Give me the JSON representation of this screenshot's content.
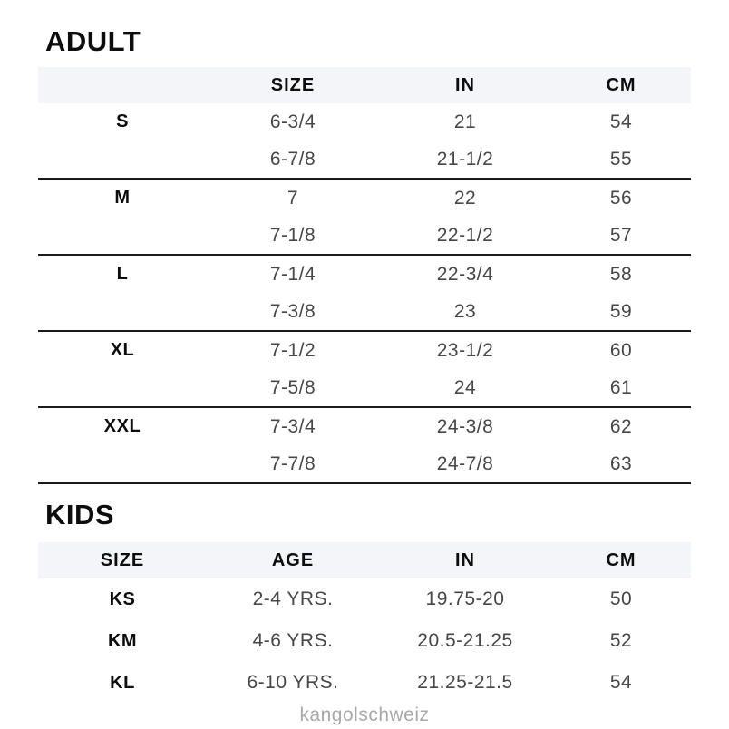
{
  "chart_data": [
    {
      "type": "table",
      "title": "ADULT",
      "columns": [
        "",
        "SIZE",
        "IN",
        "CM"
      ],
      "rows": [
        [
          "S",
          "6-3/4",
          "21",
          "54"
        ],
        [
          "",
          "6-7/8",
          "21-1/2",
          "55"
        ],
        [
          "M",
          "7",
          "22",
          "56"
        ],
        [
          "",
          "7-1/8",
          "22-1/2",
          "57"
        ],
        [
          "L",
          "7-1/4",
          "22-3/4",
          "58"
        ],
        [
          "",
          "7-3/8",
          "23",
          "59"
        ],
        [
          "XL",
          "7-1/2",
          "23-1/2",
          "60"
        ],
        [
          "",
          "7-5/8",
          "24",
          "61"
        ],
        [
          "XXL",
          "7-3/4",
          "24-3/8",
          "62"
        ],
        [
          "",
          "7-7/8",
          "24-7/8",
          "63"
        ]
      ]
    },
    {
      "type": "table",
      "title": "KIDS",
      "columns": [
        "SIZE",
        "AGE",
        "IN",
        "CM"
      ],
      "rows": [
        [
          "KS",
          "2-4 YRS.",
          "19.75-20",
          "50"
        ],
        [
          "KM",
          "4-6 YRS.",
          "20.5-21.25",
          "52"
        ],
        [
          "KL",
          "6-10 YRS.",
          "21.25-21.5",
          "54"
        ]
      ]
    }
  ],
  "footer": {
    "watermark": "kangolschweiz"
  },
  "colors": {
    "header_band": "#f3f5f9",
    "title_text": "#0d0d0d",
    "value_text": "#474747",
    "separator": "#1a1a1a",
    "watermark_text": "#a9a9a9"
  }
}
